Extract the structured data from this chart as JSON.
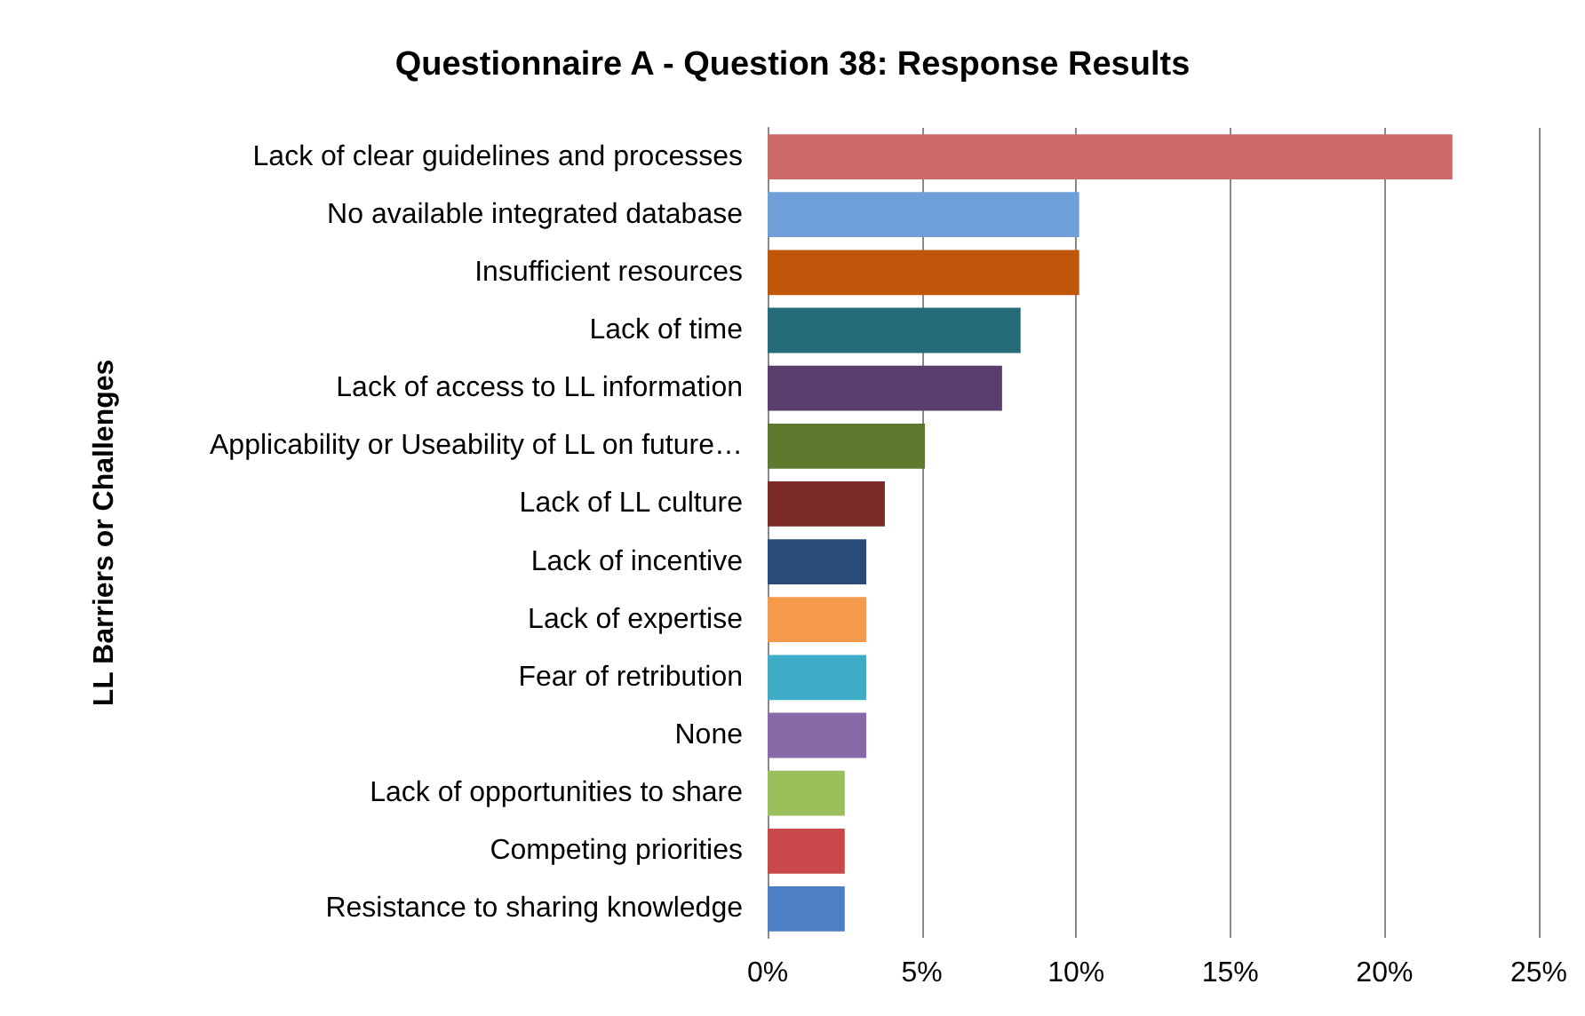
{
  "chart_data": {
    "type": "bar",
    "orientation": "horizontal",
    "title": "Questionnaire A - Question 38: Response Results",
    "ylabel": "LL Barriers or Challenges",
    "categories": [
      "Lack of clear guidelines and processes",
      "No available integrated database",
      "Insufficient resources",
      "Lack of time",
      "Lack of access to LL information",
      "Applicability or Useability of LL on future…",
      "Lack of LL culture",
      "Lack of incentive",
      "Lack of expertise",
      "Fear of retribution",
      "None",
      "Lack of opportunities to share",
      "Competing priorities",
      "Resistance to sharing knowledge"
    ],
    "values": [
      22.2,
      10.1,
      10.1,
      8.2,
      7.6,
      5.1,
      3.8,
      3.2,
      3.2,
      3.2,
      3.2,
      2.5,
      2.5,
      2.5
    ],
    "colors": [
      "#cd6b6b",
      "#6f9fd8",
      "#c0560a",
      "#246b78",
      "#5a3f6e",
      "#5d7a2f",
      "#7b2b27",
      "#2a4a78",
      "#f59a4a",
      "#3fadc8",
      "#8769a8",
      "#9bbf5a",
      "#c9484a",
      "#4d7fc4"
    ],
    "xlim": [
      0,
      25
    ],
    "xticks": [
      {
        "value": 0,
        "label": "0%"
      },
      {
        "value": 5,
        "label": "5%"
      },
      {
        "value": 10,
        "label": "10%"
      },
      {
        "value": 15,
        "label": "15%"
      },
      {
        "value": 20,
        "label": "20%"
      },
      {
        "value": 25,
        "label": "25%"
      }
    ],
    "grid": "x"
  }
}
